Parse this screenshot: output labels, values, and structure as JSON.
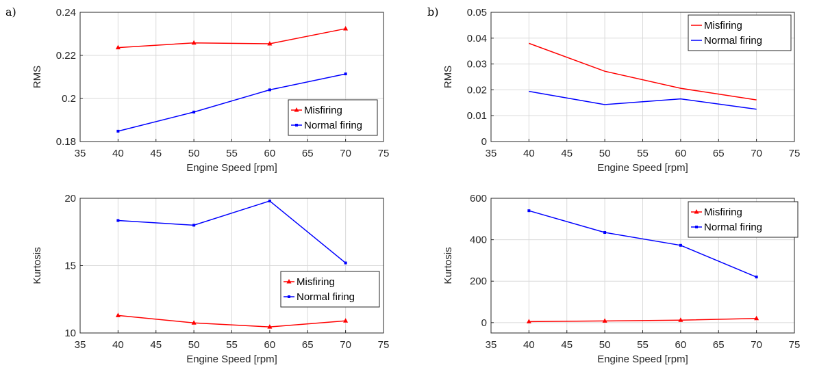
{
  "panel_labels": [
    "a)",
    "b)"
  ],
  "chart_data": [
    {
      "type": "line",
      "panel": "a)",
      "xlabel": "Engine Speed [rpm]",
      "ylabel": "RMS",
      "xlim": [
        35,
        75
      ],
      "ylim": [
        0.18,
        0.24
      ],
      "xticks": [
        "35",
        "40",
        "45",
        "50",
        "55",
        "60",
        "65",
        "70",
        "75"
      ],
      "yticks": [
        "0.18",
        "0.2",
        "0.22",
        "0.24"
      ],
      "grid": true,
      "legend": "bottom-right",
      "x": [
        40,
        50,
        60,
        70
      ],
      "series": [
        {
          "name": "Misfiring",
          "color": "#ff0000",
          "marker": "triangle",
          "values": [
            0.2236,
            0.2258,
            0.2254,
            0.2324
          ]
        },
        {
          "name": "Normal firing",
          "color": "#0000ff",
          "marker": "dot",
          "values": [
            0.1848,
            0.1937,
            0.204,
            0.2114
          ]
        }
      ]
    },
    {
      "type": "line",
      "panel": "b)",
      "xlabel": "Engine Speed [rpm]",
      "ylabel": "RMS",
      "xlim": [
        35,
        75
      ],
      "ylim": [
        0,
        0.05
      ],
      "xticks": [
        "35",
        "40",
        "45",
        "50",
        "55",
        "60",
        "65",
        "70",
        "75"
      ],
      "yticks": [
        "0",
        "0.01",
        "0.02",
        "0.03",
        "0.04",
        "0.05"
      ],
      "grid": true,
      "legend": "top-right",
      "x": [
        40,
        50,
        60,
        70
      ],
      "series": [
        {
          "name": "Misfiring",
          "color": "#ff0000",
          "marker": "none",
          "values": [
            0.038,
            0.0272,
            0.0206,
            0.0161
          ]
        },
        {
          "name": "Normal firing",
          "color": "#0000ff",
          "marker": "none",
          "values": [
            0.0194,
            0.0143,
            0.0165,
            0.0125
          ]
        }
      ]
    },
    {
      "type": "line",
      "panel": "a)",
      "xlabel": "Engine Speed [rpm]",
      "ylabel": "Kurtosis",
      "xlim": [
        35,
        75
      ],
      "ylim": [
        10,
        20
      ],
      "xticks": [
        "35",
        "40",
        "45",
        "50",
        "55",
        "60",
        "65",
        "70",
        "75"
      ],
      "yticks": [
        "10",
        "15",
        "20"
      ],
      "grid": true,
      "legend": "bottom-right",
      "x": [
        40,
        50,
        60,
        70
      ],
      "series": [
        {
          "name": "Misfiring",
          "color": "#ff0000",
          "marker": "triangle",
          "values": [
            11.3,
            10.75,
            10.45,
            10.9
          ]
        },
        {
          "name": "Normal firing",
          "color": "#0000ff",
          "marker": "dot",
          "values": [
            18.35,
            18.0,
            19.8,
            15.2
          ]
        }
      ]
    },
    {
      "type": "line",
      "panel": "b)",
      "xlabel": "Engine Speed [rpm]",
      "ylabel": "Kurtosis",
      "xlim": [
        35,
        75
      ],
      "ylim": [
        -50,
        600
      ],
      "xticks": [
        "35",
        "40",
        "45",
        "50",
        "55",
        "60",
        "65",
        "70",
        "75"
      ],
      "yticks": [
        "0",
        "200",
        "400",
        "600"
      ],
      "ytick_values": [
        0,
        200,
        400,
        600
      ],
      "grid": true,
      "legend": "top-right",
      "x": [
        40,
        50,
        60,
        70
      ],
      "series": [
        {
          "name": "Misfiring",
          "color": "#ff0000",
          "marker": "triangle",
          "values": [
            5,
            8,
            12,
            20
          ]
        },
        {
          "name": "Normal firing",
          "color": "#0000ff",
          "marker": "dot",
          "values": [
            540,
            435,
            373,
            220
          ]
        }
      ]
    }
  ]
}
